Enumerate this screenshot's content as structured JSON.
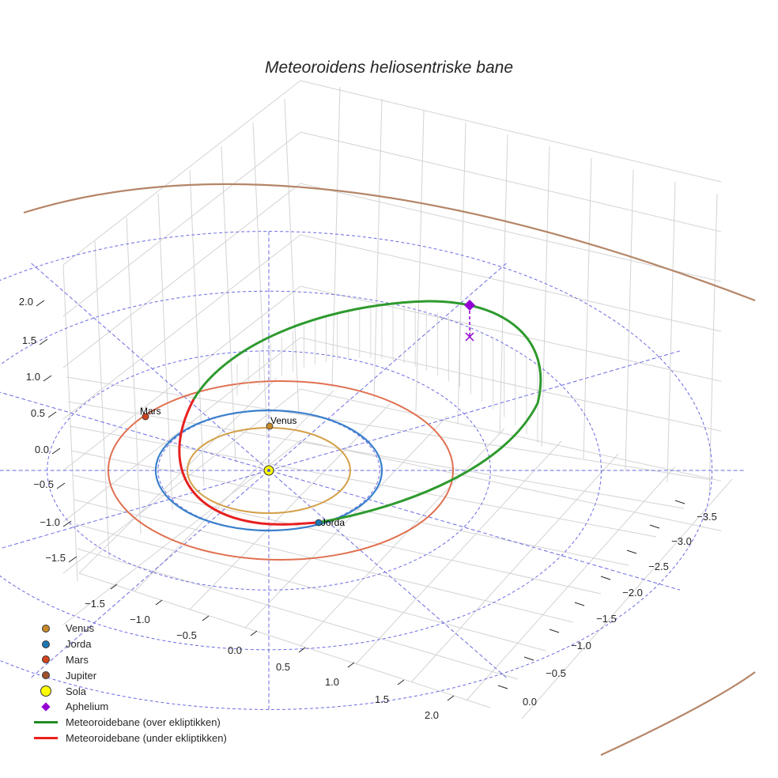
{
  "title": "Meteoroidens heliosentriske bane",
  "legend": [
    {
      "label": "Venus",
      "kind": "dot",
      "color": "#c98a2b",
      "icon": "venus-marker-icon"
    },
    {
      "label": "Jorda",
      "kind": "dot",
      "color": "#1f77b4",
      "icon": "earth-marker-icon"
    },
    {
      "label": "Mars",
      "kind": "dot",
      "color": "#d2451e",
      "icon": "mars-marker-icon"
    },
    {
      "label": "Jupiter",
      "kind": "dot",
      "color": "#a0522d",
      "icon": "jupiter-marker-icon"
    },
    {
      "label": "Sola",
      "kind": "bigdot",
      "color": "#ffff00",
      "icon": "sun-marker-icon"
    },
    {
      "label": "Aphelium",
      "kind": "diamond",
      "color": "#9400d3",
      "icon": "aphelion-diamond-icon"
    },
    {
      "label": "Meteoroidebane (over ekliptikken)",
      "kind": "line",
      "color": "#228b22",
      "icon": "orbit-above-line-icon"
    },
    {
      "label": "Meteoroidebane (under ekliptikken)",
      "kind": "line",
      "color": "#e8201c",
      "icon": "orbit-below-line-icon"
    }
  ],
  "planet_labels": {
    "venus": "Venus",
    "earth": "Jorda",
    "mars": "Mars"
  },
  "colors": {
    "venus_orbit": "#d4a04a",
    "earth_orbit": "#3a80cc",
    "mars_orbit": "#e07050",
    "jupiter_orbit": "#b58568",
    "above": "#2e9a2e",
    "below": "#e82020",
    "grid": "#d3d3d3",
    "ecliptic_grid": "#6b6be0",
    "aphelion": "#9400d3"
  },
  "chart_data": {
    "type": "line3d",
    "title": "Meteoroidens heliosentriske bane",
    "xlabel": "",
    "ylabel": "",
    "zlabel": "",
    "x_ticks": [
      -1.5,
      -1.0,
      -0.5,
      0.0,
      0.5,
      1.0,
      1.5,
      2.0
    ],
    "y_ticks": [
      0.0,
      -0.5,
      -1.0,
      -1.5,
      -2.0,
      -2.5,
      -3.0,
      -3.5
    ],
    "z_ticks": [
      -1.5,
      -1.0,
      -0.5,
      0.0,
      0.5,
      1.0,
      1.5,
      2.0
    ],
    "x_tick_labels": [
      "−1.5",
      "−1.0",
      "−0.5",
      "0.0",
      "0.5",
      "1.0",
      "1.5",
      "2.0"
    ],
    "y_tick_labels": [
      "0.0",
      "−0.5",
      "−1.0",
      "−1.5",
      "−2.0",
      "−2.5",
      "−3.0",
      "−3.5"
    ],
    "z_tick_labels": [
      "−1.5",
      "−1.0",
      "−0.5",
      "0.0",
      "0.5",
      "1.0",
      "1.5",
      "2.0"
    ],
    "series": [
      {
        "name": "Venus",
        "type": "circular_orbit",
        "radius_au": 0.72,
        "planet_position": "top of orbit"
      },
      {
        "name": "Jorda",
        "type": "circular_orbit",
        "radius_au": 1.0,
        "planet_position": "lower-right of orbit, at meteoroid node"
      },
      {
        "name": "Mars",
        "type": "circular_orbit",
        "radius_au": 1.52,
        "planet_position": "upper-left of orbit"
      },
      {
        "name": "Jupiter",
        "type": "circular_orbit",
        "radius_au": 5.2
      },
      {
        "name": "Sola",
        "type": "point",
        "x": 0,
        "y": 0,
        "z": 0
      },
      {
        "name": "Aphelium",
        "type": "point",
        "note": "with dashed drop line to ecliptic (x marker)"
      },
      {
        "name": "Meteoroidebane (over ekliptikken)",
        "type": "ellipse_segment",
        "above_ecliptic": true
      },
      {
        "name": "Meteoroidebane (under ekliptikken)",
        "type": "ellipse_segment",
        "above_ecliptic": false
      }
    ],
    "ecliptic_reference": {
      "rings_au": [
        1,
        2,
        3,
        4,
        5
      ],
      "radial_lines_deg_step": 30,
      "style": "dashed blue"
    },
    "grid": true,
    "legend_position": "lower left"
  }
}
